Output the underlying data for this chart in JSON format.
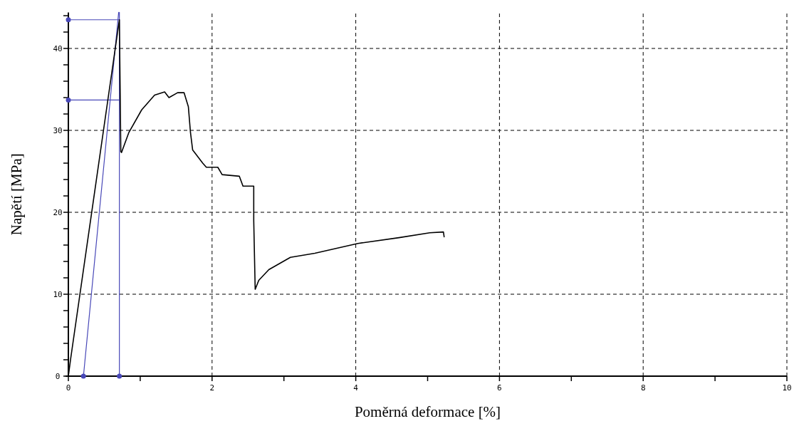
{
  "chart_data": {
    "type": "line",
    "xlabel": "Poměrná deformace [%]",
    "ylabel": "Napětí [MPa]",
    "xlim": [
      0,
      10
    ],
    "ylim": [
      0,
      44.4
    ],
    "xticks": [
      0,
      {
        "value": 1,
        "label": null
      },
      2,
      {
        "value": 3,
        "label": null
      },
      4,
      {
        "value": 5,
        "label": null
      },
      6,
      {
        "value": 7,
        "label": null
      },
      8,
      {
        "value": 9,
        "label": null
      },
      10
    ],
    "yticks": [
      0,
      {
        "value": 2,
        "label": null
      },
      {
        "value": 4,
        "label": null
      },
      {
        "value": 6,
        "label": null
      },
      {
        "value": 8,
        "label": null
      },
      10,
      {
        "value": 12,
        "label": null
      },
      {
        "value": 14,
        "label": null
      },
      {
        "value": 16,
        "label": null
      },
      {
        "value": 18,
        "label": null
      },
      20,
      {
        "value": 22,
        "label": null
      },
      {
        "value": 24,
        "label": null
      },
      {
        "value": 26,
        "label": null
      },
      {
        "value": 28,
        "label": null
      },
      30,
      {
        "value": 32,
        "label": null
      },
      {
        "value": 34,
        "label": null
      },
      {
        "value": 36,
        "label": null
      },
      {
        "value": 38,
        "label": null
      },
      40,
      {
        "value": 42,
        "label": null
      },
      {
        "value": 44,
        "label": null
      }
    ],
    "grid": true,
    "line_style": "solid",
    "marker": "none",
    "series": [
      {
        "color": "#4848b8",
        "x": [
          0.21,
          0.7
        ],
        "values": [
          0,
          44.4
        ]
      },
      {
        "color": "#4848b8",
        "x": [
          0.71,
          0.71
        ],
        "values": [
          0,
          44.4
        ]
      },
      {
        "color": "#4848b8",
        "x": [
          0,
          0.71
        ],
        "values": [
          43.5,
          43.5
        ]
      },
      {
        "color": "#4848b8",
        "x": [
          0,
          0.71
        ],
        "values": [
          33.7,
          33.7
        ]
      },
      {
        "type": "scatter",
        "marker": "circle",
        "color": "#4848b8",
        "x": [
          0,
          0,
          0.71,
          0.21
        ],
        "values": [
          43.5,
          33.7,
          0,
          0
        ]
      },
      {
        "color": "#000000",
        "x": [
          0,
          0.03,
          0.71,
          0.73,
          0.74,
          0.84,
          1.02,
          1.2,
          1.34,
          1.4,
          1.52,
          1.61,
          1.67,
          1.7,
          1.73,
          1.87,
          1.92,
          2.08,
          2.14,
          2.38,
          2.43,
          2.58,
          2.58,
          2.6,
          2.65,
          2.79,
          3.09,
          3.43,
          4.03,
          4.6,
          5.03,
          5.22,
          5.23
        ],
        "values": [
          0,
          2,
          43.5,
          27.4,
          27.3,
          29.7,
          32.5,
          34.3,
          34.7,
          34,
          34.6,
          34.6,
          32.9,
          29.7,
          27.6,
          26,
          25.5,
          25.5,
          24.6,
          24.4,
          23.2,
          23.2,
          19,
          10.6,
          11.7,
          13,
          14.5,
          15,
          16.2,
          16.9,
          17.5,
          17.6,
          17
        ]
      }
    ]
  }
}
